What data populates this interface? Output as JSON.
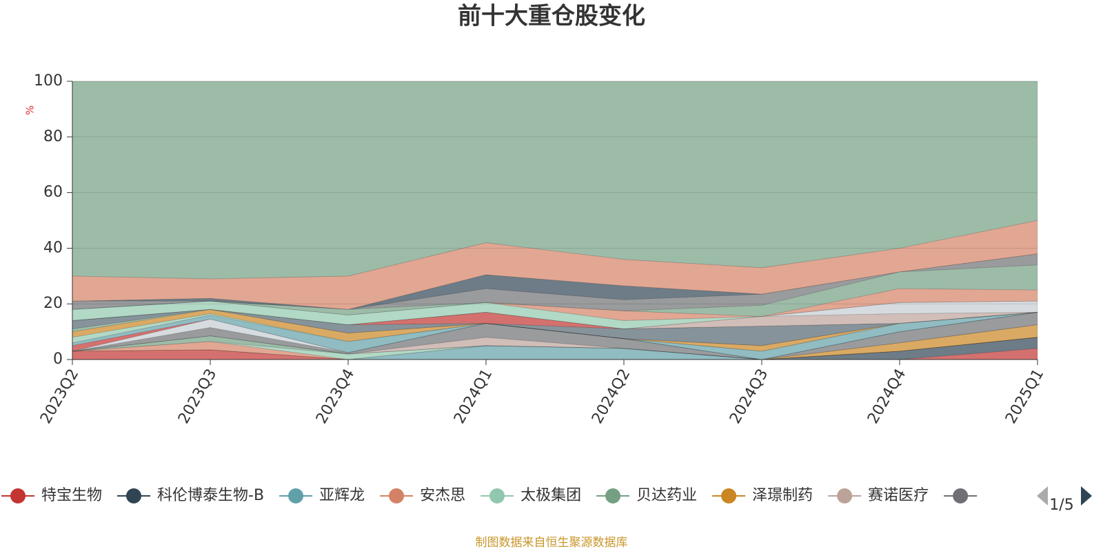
{
  "chart_data": {
    "type": "stacked-area",
    "title": "前十大重仓股变化",
    "y_unit": "%",
    "categories": [
      "2023Q2",
      "2023Q3",
      "2023Q4",
      "2024Q1",
      "2024Q2",
      "2024Q3",
      "2024Q4",
      "2025Q1"
    ],
    "ylim": [
      0,
      100
    ],
    "yticks": [
      0,
      20,
      40,
      60,
      80,
      100
    ],
    "grid": true,
    "series": [
      {
        "name": "特宝生物",
        "color": "#c23531",
        "values": [
          3,
          3.5,
          0,
          0,
          0,
          0,
          0,
          4
        ]
      },
      {
        "name": "科伦博泰生物-B",
        "color": "#2f4554",
        "values": [
          0,
          0,
          0,
          0,
          0,
          0,
          3,
          4
        ]
      },
      {
        "name": "亚辉龙",
        "color": "#61a0a8",
        "values": [
          0,
          0,
          0,
          5,
          4,
          0,
          0,
          0
        ]
      },
      {
        "name": "安杰思",
        "color": "#d48265",
        "values": [
          0,
          3,
          0,
          0,
          0,
          0,
          0,
          0
        ]
      },
      {
        "name": "太极集团",
        "color": "#91c7ae",
        "values": [
          0,
          0,
          2,
          0,
          0,
          0,
          0,
          0
        ]
      },
      {
        "name": "贝达药业",
        "color": "#749f83",
        "values": [
          0,
          2,
          0,
          0,
          0,
          0,
          0,
          0
        ]
      },
      {
        "name": "泽璟制药",
        "color": "#ca8622",
        "values": [
          0,
          0,
          0,
          0,
          0,
          0,
          3,
          4.5
        ]
      },
      {
        "name": "赛诺医疗",
        "color": "#bda29a",
        "values": [
          0,
          0,
          0,
          3,
          0,
          0,
          0,
          0
        ]
      },
      {
        "name": null,
        "color": "#6e7074",
        "values": [
          0,
          3,
          0.5,
          5,
          3.5,
          0,
          4,
          4.5
        ]
      },
      {
        "name": null,
        "color": "#c4ccd3",
        "values": [
          0,
          3,
          0,
          0,
          0,
          0,
          0,
          0
        ]
      },
      {
        "name": null,
        "color": "#c23531",
        "values": [
          2,
          0,
          0,
          0,
          0,
          0,
          0,
          0
        ]
      },
      {
        "name": null,
        "color": "#61a0a8",
        "values": [
          1,
          1.5,
          4,
          0,
          0,
          3,
          3,
          0
        ]
      },
      {
        "name": null,
        "color": "#91c7ae",
        "values": [
          2,
          0.5,
          0,
          0,
          0,
          0,
          0,
          0
        ]
      },
      {
        "name": null,
        "color": "#ca8622",
        "values": [
          2,
          1.5,
          3,
          0,
          0,
          2,
          0,
          0
        ]
      },
      {
        "name": null,
        "color": "#749f83",
        "values": [
          1,
          0,
          0,
          0,
          0,
          0,
          0,
          0
        ]
      },
      {
        "name": null,
        "color": "#546570",
        "values": [
          3,
          0,
          3,
          0,
          3.5,
          7,
          0,
          0
        ]
      },
      {
        "name": null,
        "color": "#c23531",
        "values": [
          0,
          0,
          0,
          4,
          0,
          0,
          0,
          0
        ]
      },
      {
        "name": null,
        "color": "#bda29a",
        "values": [
          0,
          0,
          0,
          0,
          0,
          3.5,
          3.5,
          0
        ]
      },
      {
        "name": null,
        "color": "#c4ccd3",
        "values": [
          0,
          0,
          0,
          0,
          0,
          0,
          4,
          4
        ]
      },
      {
        "name": null,
        "color": "#91c7ae",
        "values": [
          4,
          3,
          3.5,
          3.5,
          3,
          0,
          0,
          0
        ]
      },
      {
        "name": null,
        "color": "#d48265",
        "values": [
          0,
          0,
          0,
          0,
          3.5,
          0,
          5,
          4
        ]
      },
      {
        "name": null,
        "color": "#749f83",
        "values": [
          0,
          0,
          2,
          0,
          0,
          4,
          6,
          9
        ]
      },
      {
        "name": null,
        "color": "#6e7074",
        "values": [
          3,
          0,
          0,
          5,
          4,
          4,
          0,
          4
        ]
      },
      {
        "name": null,
        "color": "#2f4554",
        "values": [
          0,
          1,
          0,
          5,
          5,
          0,
          0,
          0
        ]
      },
      {
        "name": null,
        "color": "#d48265",
        "values": [
          9,
          7,
          12,
          11.5,
          9.5,
          9.5,
          8.5,
          12
        ]
      },
      {
        "name": null,
        "color": "#749f83",
        "values": [
          70,
          71,
          70,
          58,
          64,
          67,
          60,
          50
        ]
      }
    ],
    "legend_page": "1/5",
    "source": "制图数据来自恒生聚源数据库"
  }
}
